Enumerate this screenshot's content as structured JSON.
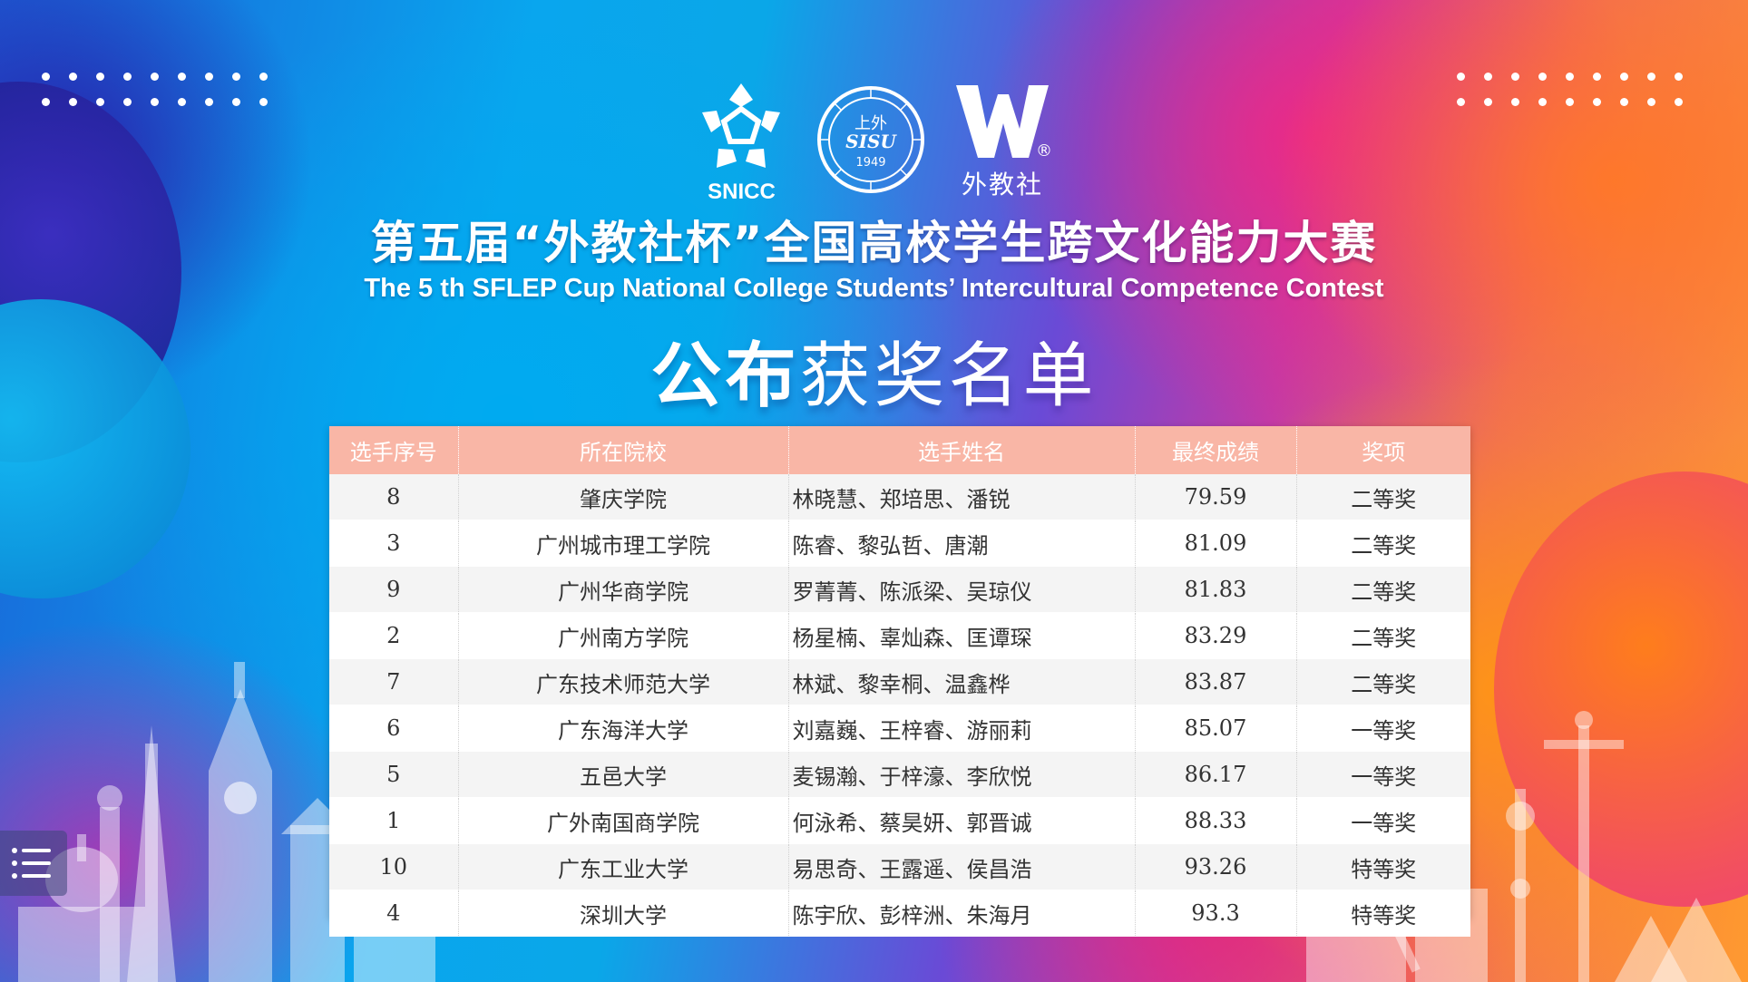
{
  "header": {
    "logo_left_text": "SNICC",
    "logo_center_text_top": "上外",
    "logo_center_text_mid": "SISU",
    "logo_center_year": "1949",
    "logo_right_text": "外教社",
    "logo_right_mark": "®",
    "title_cn": "第五届“外教社杯”全国高校学生跨文化能力大赛",
    "title_en": "The  5 th SFLEP Cup National College Students’ Intercultural Competence Contest",
    "announce_bold": "公布",
    "announce_thin": "获奖名单"
  },
  "table": {
    "columns": [
      "选手序号",
      "所在院校",
      "选手姓名",
      "最终成绩",
      "奖项"
    ],
    "rows": [
      {
        "id": "8",
        "school": "肇庆学院",
        "names": "林晓慧、郑培思、潘锐",
        "score": "79.59",
        "award": "二等奖"
      },
      {
        "id": "3",
        "school": "广州城市理工学院",
        "names": "陈睿、黎弘哲、唐潮",
        "score": "81.09",
        "award": "二等奖"
      },
      {
        "id": "9",
        "school": "广州华商学院",
        "names": "罗菁菁、陈派梁、吴琼仪",
        "score": "81.83",
        "award": "二等奖"
      },
      {
        "id": "2",
        "school": "广州南方学院",
        "names": "杨星楠、辜灿森、匡谭琛",
        "score": "83.29",
        "award": "二等奖"
      },
      {
        "id": "7",
        "school": "广东技术师范大学",
        "names": "林斌、黎幸桐、温鑫桦",
        "score": "83.87",
        "award": "二等奖"
      },
      {
        "id": "6",
        "school": "广东海洋大学",
        "names": "刘嘉巍、王梓睿、游丽莉",
        "score": "85.07",
        "award": "一等奖"
      },
      {
        "id": "5",
        "school": "五邑大学",
        "names": "麦锡瀚、于梓濠、李欣悦",
        "score": "86.17",
        "award": "一等奖"
      },
      {
        "id": "1",
        "school": "广外南国商学院",
        "names": "何泳希、蔡昊妍、郭晋诚",
        "score": "88.33",
        "award": "一等奖"
      },
      {
        "id": "10",
        "school": "广东工业大学",
        "names": "易思奇、王露遥、侯昌浩",
        "score": "93.26",
        "award": "特等奖"
      },
      {
        "id": "4",
        "school": "深圳大学",
        "names": "陈宇欣、彭梓洲、朱海月",
        "score": "93.3",
        "award": "特等奖"
      }
    ]
  },
  "controls": {
    "menu_icon": "list-menu-icon"
  },
  "colors": {
    "header_row": "#f9b6a6",
    "row_alt": "#f4f4f4",
    "text": "#333333"
  }
}
